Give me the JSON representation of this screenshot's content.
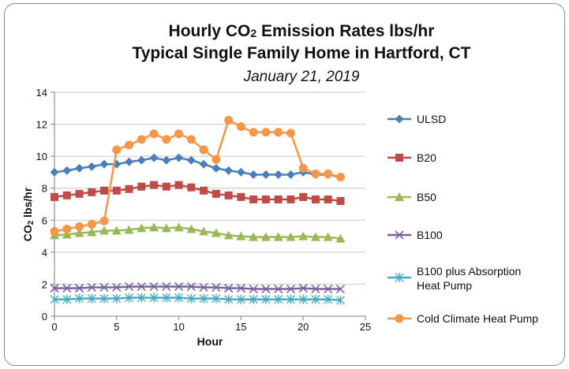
{
  "chart_data": {
    "type": "line",
    "title_line1_pre": "Hourly CO",
    "title_line1_sub": "2",
    "title_line1_post": " Emission Rates lbs/hr",
    "title_line2": "Typical Single Family Home in Hartford, CT",
    "subtitle": "January 21, 2019",
    "xlabel": "Hour",
    "ylabel_pre": "CO",
    "ylabel_sub": "2",
    "ylabel_post": " lbs/hr",
    "xlim": [
      0,
      25
    ],
    "ylim": [
      0,
      14
    ],
    "xticks": [
      0,
      5,
      10,
      15,
      20,
      25
    ],
    "yticks": [
      0,
      2,
      4,
      6,
      8,
      10,
      12,
      14
    ],
    "x": [
      0,
      1,
      2,
      3,
      4,
      5,
      6,
      7,
      8,
      9,
      10,
      11,
      12,
      13,
      14,
      15,
      16,
      17,
      18,
      19,
      20,
      21,
      22,
      23
    ],
    "series": [
      {
        "name": "ULSD",
        "color": "#4a7ebb",
        "marker": "diamond",
        "values": [
          9.0,
          9.1,
          9.25,
          9.35,
          9.5,
          9.5,
          9.65,
          9.75,
          9.9,
          9.75,
          9.9,
          9.75,
          9.5,
          9.25,
          9.1,
          9.0,
          8.85,
          8.85,
          8.85,
          8.85,
          9.0,
          8.85,
          8.85,
          8.7
        ]
      },
      {
        "name": "B20",
        "color": "#be4b48",
        "marker": "square",
        "values": [
          7.45,
          7.55,
          7.65,
          7.75,
          7.85,
          7.85,
          7.95,
          8.1,
          8.2,
          8.1,
          8.2,
          8.05,
          7.85,
          7.65,
          7.55,
          7.45,
          7.3,
          7.3,
          7.3,
          7.3,
          7.45,
          7.3,
          7.3,
          7.2
        ]
      },
      {
        "name": "B50",
        "color": "#98b954",
        "marker": "triangle",
        "values": [
          5.05,
          5.1,
          5.2,
          5.25,
          5.35,
          5.35,
          5.4,
          5.5,
          5.55,
          5.5,
          5.55,
          5.45,
          5.3,
          5.2,
          5.05,
          5.0,
          4.95,
          4.95,
          4.95,
          4.95,
          5.0,
          4.95,
          4.95,
          4.85
        ]
      },
      {
        "name": "B100",
        "color": "#7d60a0",
        "marker": "x",
        "values": [
          1.75,
          1.75,
          1.75,
          1.8,
          1.8,
          1.8,
          1.85,
          1.85,
          1.85,
          1.85,
          1.85,
          1.85,
          1.8,
          1.8,
          1.75,
          1.75,
          1.7,
          1.7,
          1.7,
          1.7,
          1.75,
          1.7,
          1.7,
          1.7
        ]
      },
      {
        "name": "B100 plus Absorption Heat Pump",
        "label_lines": [
          "B100 plus Absorption",
          "Heat Pump"
        ],
        "color": "#46aac5",
        "marker": "asterisk",
        "values": [
          1.05,
          1.05,
          1.1,
          1.1,
          1.1,
          1.1,
          1.15,
          1.15,
          1.15,
          1.15,
          1.15,
          1.1,
          1.1,
          1.1,
          1.05,
          1.05,
          1.05,
          1.05,
          1.05,
          1.05,
          1.05,
          1.05,
          1.05,
          1.0
        ]
      },
      {
        "name": "Cold Climate Heat Pump",
        "color": "#f79646",
        "marker": "circle",
        "values": [
          5.3,
          5.45,
          5.6,
          5.75,
          5.95,
          10.4,
          10.7,
          11.05,
          11.4,
          11.05,
          11.4,
          11.05,
          10.4,
          9.8,
          12.25,
          11.85,
          11.5,
          11.5,
          11.5,
          11.45,
          9.25,
          8.9,
          8.9,
          8.7
        ]
      }
    ]
  }
}
